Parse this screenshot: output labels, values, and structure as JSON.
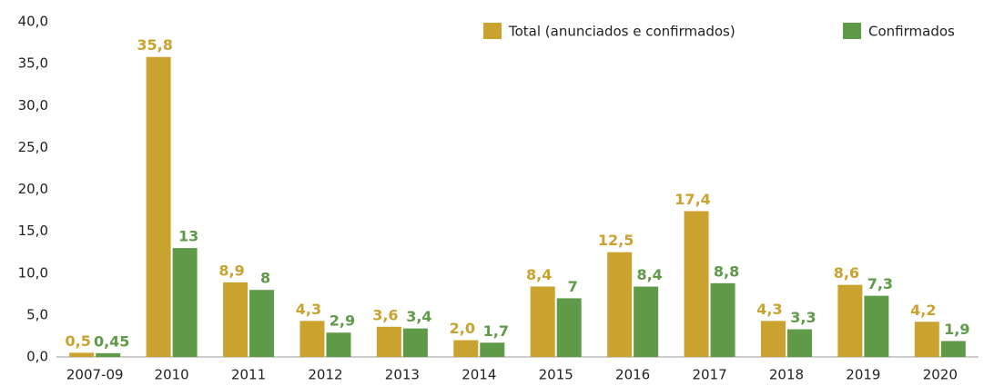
{
  "chart_data": {
    "type": "bar",
    "categories": [
      "2007-09",
      "2010",
      "2011",
      "2012",
      "2013",
      "2014",
      "2015",
      "2016",
      "2017",
      "2018",
      "2019",
      "2020"
    ],
    "series": [
      {
        "name": "Total (anunciados e confirmados)",
        "color": "#c9a22f",
        "values": [
          0.5,
          35.8,
          8.9,
          4.3,
          3.6,
          2.0,
          8.4,
          12.5,
          17.4,
          4.3,
          8.6,
          4.2
        ],
        "value_labels": [
          "0,5",
          "35,8",
          "8,9",
          "4,3",
          "3,6",
          "2,0",
          "8,4",
          "12,5",
          "17,4",
          "4,3",
          "8,6",
          "4,2"
        ]
      },
      {
        "name": "Confirmados",
        "color": "#5e9a48",
        "values": [
          0.45,
          13,
          8,
          2.9,
          3.4,
          1.7,
          7,
          8.4,
          8.8,
          3.3,
          7.3,
          1.9
        ],
        "value_labels": [
          "0,45",
          "13",
          "8",
          "2,9",
          "3,4",
          "1,7",
          "7",
          "8,4",
          "8,8",
          "3,3",
          "7,3",
          "1,9"
        ]
      }
    ],
    "ylim": [
      0,
      40
    ],
    "yticks": [
      {
        "value": 0,
        "label": "0,0"
      },
      {
        "value": 5,
        "label": "5,0"
      },
      {
        "value": 10,
        "label": "10,0"
      },
      {
        "value": 15,
        "label": "15,0"
      },
      {
        "value": 20,
        "label": "20,0"
      },
      {
        "value": 25,
        "label": "25,0"
      },
      {
        "value": 30,
        "label": "30,0"
      },
      {
        "value": 35,
        "label": "35,0"
      },
      {
        "value": 40,
        "label": "40,0"
      }
    ],
    "grid": false,
    "legend": "top-right"
  }
}
